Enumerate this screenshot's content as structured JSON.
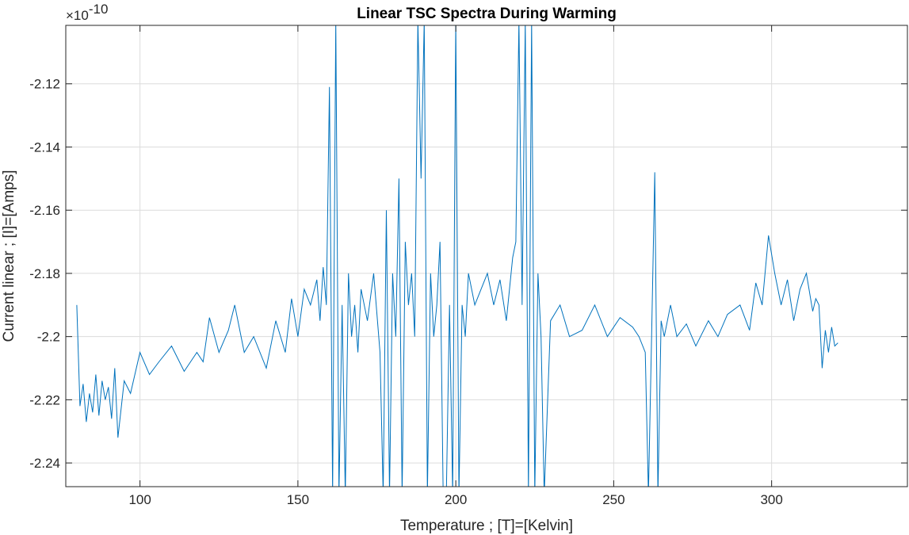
{
  "chart_data": {
    "type": "line",
    "title": "Linear TSC Spectra During Warming",
    "xlabel": "Temperature ; [T]=[Kelvin]",
    "ylabel": "Current linear ; [I]=[Amps]",
    "y_exponent_label": "×10",
    "y_exponent_power": "-10",
    "xlim": [
      76.5,
      343
    ],
    "ylim": [
      -2.2475,
      -2.1015
    ],
    "x_ticks": [
      100,
      150,
      200,
      250,
      300
    ],
    "x_tick_labels": [
      "100",
      "150",
      "200",
      "250",
      "300"
    ],
    "y_ticks": [
      -2.24,
      -2.22,
      -2.2,
      -2.18,
      -2.16,
      -2.14,
      -2.12
    ],
    "y_tick_labels": [
      "-2.24",
      "-2.22",
      "-2.2",
      "-2.18",
      "-2.16",
      "-2.14",
      "-2.12"
    ],
    "grid": true,
    "line_color": "#0072bd",
    "series": [
      {
        "x": [
          80,
          81,
          82,
          83,
          84,
          85,
          86,
          87,
          88,
          89,
          90,
          91,
          92,
          93,
          95,
          97,
          100,
          103,
          106,
          110,
          114,
          118,
          120,
          122,
          125,
          128,
          130,
          133,
          136,
          140,
          143,
          146,
          148,
          150,
          152,
          154,
          156,
          157,
          158,
          159,
          160,
          161,
          162,
          163,
          164,
          165,
          166,
          167,
          168,
          169,
          170,
          172,
          174,
          176,
          177,
          178,
          179,
          180,
          181,
          182,
          183,
          184,
          185,
          186,
          187,
          188,
          189,
          190,
          191,
          192,
          193,
          194,
          195,
          196,
          197,
          198,
          199,
          200,
          201,
          202,
          203,
          204,
          206,
          208,
          210,
          212,
          214,
          216,
          218,
          219,
          220,
          221,
          222,
          223,
          224,
          225,
          226,
          227,
          228,
          230,
          233,
          236,
          240,
          244,
          248,
          252,
          256,
          258,
          260,
          261,
          262,
          263,
          264,
          265,
          266,
          268,
          270,
          273,
          276,
          280,
          283,
          286,
          290,
          293,
          295,
          297,
          299,
          301,
          303,
          305,
          307,
          309,
          311,
          313,
          314,
          315,
          316,
          317,
          318,
          319,
          320,
          321
        ],
        "y": [
          -2.19,
          -2.222,
          -2.215,
          -2.227,
          -2.218,
          -2.224,
          -2.212,
          -2.225,
          -2.214,
          -2.22,
          -2.216,
          -2.226,
          -2.21,
          -2.232,
          -2.214,
          -2.218,
          -2.205,
          -2.212,
          -2.208,
          -2.203,
          -2.211,
          -2.205,
          -2.208,
          -2.194,
          -2.205,
          -2.198,
          -2.19,
          -2.205,
          -2.2,
          -2.21,
          -2.195,
          -2.205,
          -2.188,
          -2.2,
          -2.185,
          -2.19,
          -2.182,
          -2.195,
          -2.178,
          -2.19,
          -2.121,
          -2.25,
          -2.1,
          -2.25,
          -2.19,
          -2.25,
          -2.18,
          -2.2,
          -2.19,
          -2.205,
          -2.185,
          -2.195,
          -2.18,
          -2.205,
          -2.25,
          -2.16,
          -2.25,
          -2.18,
          -2.2,
          -2.15,
          -2.25,
          -2.17,
          -2.19,
          -2.18,
          -2.2,
          -2.1,
          -2.15,
          -2.1,
          -2.25,
          -2.18,
          -2.2,
          -2.19,
          -2.17,
          -2.25,
          -2.25,
          -2.19,
          -2.25,
          -2.1,
          -2.25,
          -2.19,
          -2.2,
          -2.18,
          -2.19,
          -2.185,
          -2.18,
          -2.19,
          -2.182,
          -2.195,
          -2.175,
          -2.17,
          -2.1,
          -2.19,
          -2.1,
          -2.25,
          -2.1,
          -2.25,
          -2.18,
          -2.2,
          -2.25,
          -2.195,
          -2.19,
          -2.2,
          -2.198,
          -2.19,
          -2.2,
          -2.194,
          -2.197,
          -2.2,
          -2.205,
          -2.25,
          -2.2,
          -2.148,
          -2.25,
          -2.195,
          -2.2,
          -2.19,
          -2.2,
          -2.196,
          -2.203,
          -2.195,
          -2.2,
          -2.193,
          -2.19,
          -2.198,
          -2.183,
          -2.19,
          -2.168,
          -2.18,
          -2.19,
          -2.182,
          -2.195,
          -2.185,
          -2.18,
          -2.192,
          -2.188,
          -2.19,
          -2.21,
          -2.198,
          -2.205,
          -2.197,
          -2.203,
          -2.202
        ]
      }
    ]
  }
}
